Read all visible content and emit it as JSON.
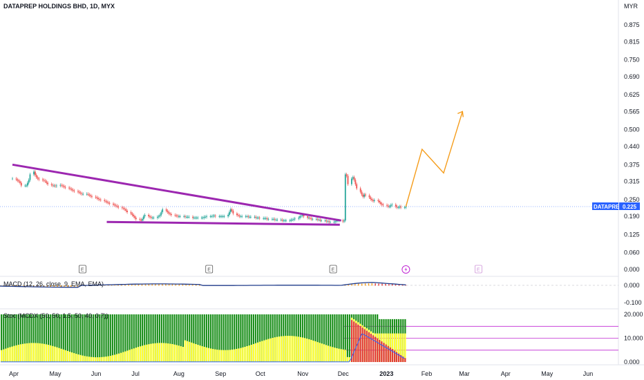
{
  "chart_data": {
    "type": "candlestick",
    "title": "DATAPREP HOLDINGS BHD, 1D, MYX",
    "currency": "MYR",
    "price_axis": {
      "ticks": [
        "0.875",
        "0.815",
        "0.750",
        "0.690",
        "0.625",
        "0.565",
        "0.500",
        "0.440",
        "0.375",
        "0.315",
        "0.250",
        "0.190",
        "0.125",
        "0.060",
        "0.000"
      ],
      "range": [
        0.0,
        0.875
      ]
    },
    "time_axis": {
      "ticks": [
        "Apr",
        "May",
        "Jun",
        "Jul",
        "Aug",
        "Sep",
        "Oct",
        "Nov",
        "Dec",
        "2023",
        "Feb",
        "Mar",
        "Apr",
        "May",
        "Jun"
      ]
    },
    "price_series": {
      "name": "DATAPREP",
      "first_date": "2022-04-01",
      "closes": [
        0.325,
        0.322,
        0.318,
        0.315,
        0.31,
        0.3,
        0.3,
        0.3,
        0.31,
        0.32,
        0.34,
        0.35,
        0.338,
        0.33,
        0.325,
        0.322,
        0.32,
        0.318,
        0.315,
        0.31,
        0.305,
        0.302,
        0.3,
        0.3,
        0.298,
        0.3,
        0.302,
        0.3,
        0.298,
        0.295,
        0.293,
        0.29,
        0.288,
        0.285,
        0.282,
        0.28,
        0.278,
        0.275,
        0.272,
        0.27,
        0.27,
        0.27,
        0.268,
        0.265,
        0.262,
        0.26,
        0.258,
        0.255,
        0.252,
        0.25,
        0.248,
        0.245,
        0.243,
        0.24,
        0.238,
        0.235,
        0.232,
        0.23,
        0.228,
        0.225,
        0.222,
        0.22,
        0.218,
        0.215,
        0.21,
        0.205,
        0.2,
        0.195,
        0.19,
        0.185,
        0.18,
        0.178,
        0.175,
        0.18,
        0.19,
        0.195,
        0.19,
        0.188,
        0.185,
        0.185,
        0.185,
        0.188,
        0.19,
        0.195,
        0.205,
        0.215,
        0.21,
        0.205,
        0.2,
        0.198,
        0.195,
        0.193,
        0.192,
        0.19,
        0.19,
        0.19,
        0.19,
        0.188,
        0.188,
        0.188,
        0.188,
        0.185,
        0.185,
        0.185,
        0.185,
        0.185,
        0.185,
        0.185,
        0.188,
        0.188,
        0.19,
        0.19,
        0.19,
        0.192,
        0.192,
        0.19,
        0.19,
        0.19,
        0.19,
        0.19,
        0.19,
        0.195,
        0.205,
        0.215,
        0.21,
        0.2,
        0.195,
        0.193,
        0.19,
        0.19,
        0.19,
        0.19,
        0.19,
        0.188,
        0.188,
        0.188,
        0.188,
        0.185,
        0.185,
        0.185,
        0.183,
        0.183,
        0.183,
        0.183,
        0.18,
        0.18,
        0.18,
        0.18,
        0.178,
        0.178,
        0.178,
        0.178,
        0.175,
        0.175,
        0.175,
        0.175,
        0.175,
        0.178,
        0.178,
        0.18,
        0.182,
        0.185,
        0.19,
        0.192,
        0.195,
        0.19,
        0.185,
        0.185,
        0.183,
        0.18,
        0.18,
        0.18,
        0.178,
        0.178,
        0.175,
        0.175,
        0.175,
        0.172,
        0.172,
        0.17,
        0.17,
        0.17,
        0.172,
        0.175,
        0.175,
        0.175,
        0.172,
        0.175,
        0.34,
        0.335,
        0.305,
        0.325,
        0.33,
        0.32,
        0.305,
        0.29,
        0.278,
        0.268,
        0.26,
        0.268,
        0.265,
        0.258,
        0.252,
        0.248,
        0.245,
        0.248,
        0.245,
        0.24,
        0.235,
        0.232,
        0.23,
        0.228,
        0.225,
        0.225,
        0.23,
        0.232,
        0.225,
        0.222,
        0.222,
        0.225,
        0.222,
        0.222,
        0.225
      ]
    },
    "last_price_label": "DATAPREP",
    "last_price": "0.225",
    "earnings_markers": [
      "E",
      "E",
      "E",
      "E"
    ],
    "trendline_upper": [
      {
        "date": "2022-04-01",
        "value": 0.375
      },
      {
        "date": "2022-12-01",
        "value": 0.175
      }
    ],
    "trendline_lower": [
      {
        "date": "2022-06-10",
        "value": 0.17
      },
      {
        "date": "2022-11-30",
        "value": 0.16
      }
    ],
    "projection": [
      {
        "date": "2023-01-18",
        "value": 0.225
      },
      {
        "date": "2023-01-30",
        "value": 0.43
      },
      {
        "date": "2023-02-15",
        "value": 0.345
      },
      {
        "date": "2023-03-01",
        "value": 0.565
      }
    ],
    "macd": {
      "label": "MACD (12, 26, close, 9, EMA, EMA)",
      "ticks": [
        "0.000",
        "-0.100"
      ]
    },
    "stoch_panel": {
      "label": "Stoc (MCDX (50, 50, 1.5, 50, 40, 0.7))",
      "ticks": [
        "20.000",
        "10.000",
        "0.000"
      ]
    }
  },
  "colors": {
    "up": "#26a69a",
    "down": "#ef5350",
    "trend": "#9c27b0",
    "projection": "#f59c1a",
    "price_tag": "#2962ff",
    "macd_line": "#1e3a8a",
    "macd_hist": "#f59c1a",
    "stoch_green": "#1b8f1b",
    "stoch_yellow": "#ffff33",
    "stoch_red": "#e53935",
    "stoch_line": "#2962ff",
    "level_line": "#c026d3"
  },
  "icons": {
    "bolt": "bolt-icon"
  }
}
